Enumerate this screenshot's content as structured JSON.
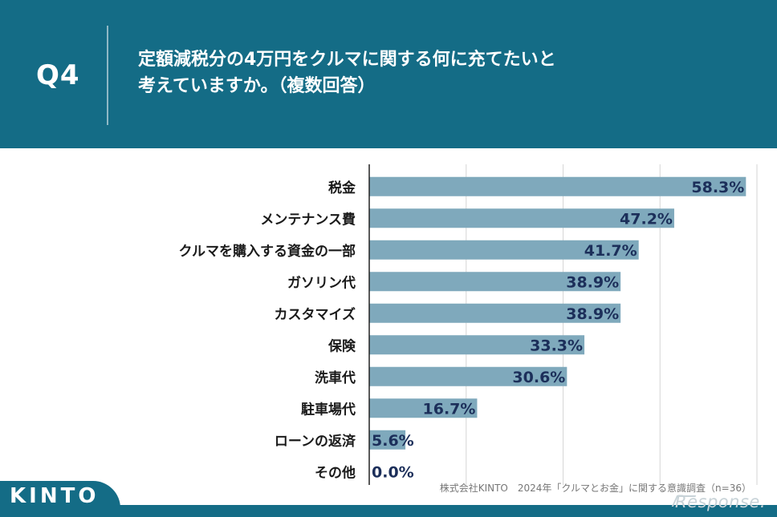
{
  "header": {
    "q_label": "Q4",
    "question_line1": "定額減税分の4万円をクルマに関する何に充てたいと",
    "question_line2": "考えていますか。（複数回答）"
  },
  "chart_data": {
    "type": "bar",
    "orientation": "horizontal",
    "categories": [
      "税金",
      "メンテナンス費",
      "クルマを購入する資金の一部",
      "ガソリン代",
      "カスタマイズ",
      "保険",
      "洗車代",
      "駐車場代",
      "ローンの返済",
      "その他"
    ],
    "values": [
      58.3,
      47.2,
      41.7,
      38.9,
      38.9,
      33.3,
      30.6,
      16.7,
      5.6,
      0.0
    ],
    "value_labels": [
      "58.3%",
      "47.2%",
      "41.7%",
      "38.9%",
      "38.9%",
      "33.3%",
      "30.6%",
      "16.7%",
      "5.6%",
      "0.0%"
    ],
    "xlim": [
      0,
      60
    ],
    "grid": true,
    "bar_color": "#7fa9bc",
    "label_color": "#1c2f5a"
  },
  "footnote": "株式会社KINTO　2024年「クルマとお金」に関する意識調査（n=36）",
  "logo": "KINTO",
  "watermark": "Response.",
  "colors": {
    "background": "#146c86",
    "panel": "#ffffff",
    "bar": "#7fa9bc"
  }
}
